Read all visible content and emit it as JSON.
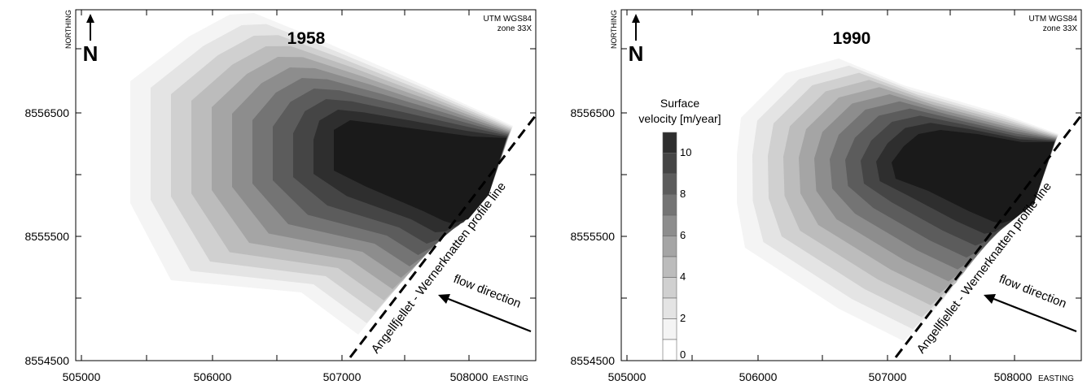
{
  "panels": [
    {
      "id": "left",
      "year": "1958",
      "crs_line1": "UTM WGS84",
      "crs_line2": "zone 33X",
      "north_letter": "N",
      "northing_label": "NORTHING",
      "easting_label": "EASTING",
      "y_ticks": [
        "8556500",
        "8555500",
        "8554500"
      ],
      "x_ticks": [
        "505000",
        "506000",
        "507000",
        "508000"
      ],
      "profile_label": "Angellfjellet - Wernerknatten profile line",
      "flow_label": "flow direction"
    },
    {
      "id": "right",
      "year": "1990",
      "crs_line1": "UTM WGS84",
      "crs_line2": "zone 33X",
      "north_letter": "N",
      "northing_label": "NORTHING",
      "easting_label": "EASTING",
      "y_ticks": [
        "8556500",
        "8555500",
        "8554500"
      ],
      "x_ticks": [
        "505000",
        "506000",
        "507000",
        "508000"
      ],
      "profile_label": "Angellfjellet - Wernerknatten profile line",
      "flow_label": "flow direction"
    }
  ],
  "legend": {
    "title_line1": "Surface",
    "title_line2": "velocity [m/year]",
    "labels": [
      "10",
      "8",
      "6",
      "4",
      "2",
      "0"
    ],
    "level_colors": [
      "#f4f4f4",
      "#e4e4e4",
      "#d0d0d0",
      "#bcbcbc",
      "#a5a5a5",
      "#8d8d8d",
      "#747474",
      "#5c5c5c",
      "#454545",
      "#2e2e2e",
      "#1a1a1a"
    ]
  }
}
